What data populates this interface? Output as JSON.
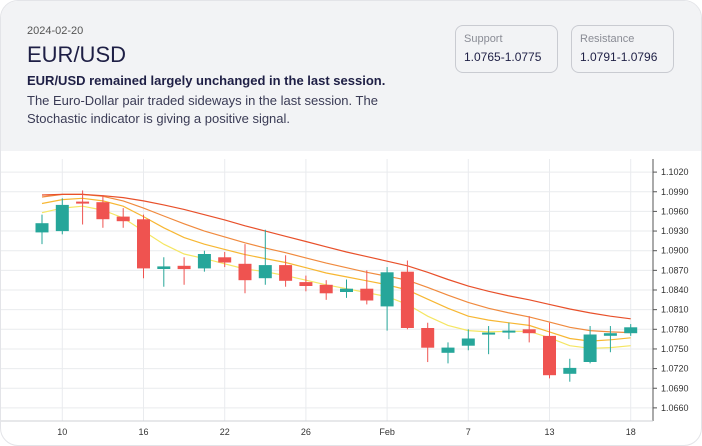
{
  "header": {
    "date": "2024-02-20",
    "pair": "EUR/USD",
    "headline": "EUR/USD remained largely unchanged in the last session.",
    "description": "The Euro-Dollar pair traded sideways in the last session. The Stochastic indicator is giving a positive signal."
  },
  "levels": {
    "support": {
      "label": "Support",
      "value": "1.0765-1.0775"
    },
    "resistance": {
      "label": "Resistance",
      "value": "1.0791-1.0796"
    }
  },
  "colors": {
    "up": "#26a69a",
    "down": "#ef5350",
    "ma1": "#f5e663",
    "ma2": "#f7b733",
    "ma3": "#f08a3e",
    "ma4": "#e8502a"
  },
  "chart_data": {
    "type": "candlestick",
    "title": "EUR/USD",
    "ylim": [
      1.064,
      1.104
    ],
    "yticks": [
      "1.1020",
      "1.0990",
      "1.0960",
      "1.0930",
      "1.0900",
      "1.0870",
      "1.0840",
      "1.0810",
      "1.0780",
      "1.0750",
      "1.0720",
      "1.0690",
      "1.0660"
    ],
    "xticks": [
      {
        "label": "10",
        "index": 1
      },
      {
        "label": "16",
        "index": 5
      },
      {
        "label": "22",
        "index": 9
      },
      {
        "label": "26",
        "index": 13
      },
      {
        "label": "Feb",
        "index": 17
      },
      {
        "label": "7",
        "index": 21
      },
      {
        "label": "13",
        "index": 25
      },
      {
        "label": "18",
        "index": 29
      }
    ],
    "candles": [
      {
        "open": 1.0928,
        "high": 1.0955,
        "low": 1.091,
        "close": 1.0942
      },
      {
        "open": 1.093,
        "high": 1.098,
        "low": 1.0925,
        "close": 1.097
      },
      {
        "open": 1.0975,
        "high": 1.0992,
        "low": 1.094,
        "close": 1.0972
      },
      {
        "open": 1.0974,
        "high": 1.0985,
        "low": 1.0935,
        "close": 1.0948
      },
      {
        "open": 1.0952,
        "high": 1.0965,
        "low": 1.0935,
        "close": 1.0945
      },
      {
        "open": 1.0948,
        "high": 1.0955,
        "low": 1.0858,
        "close": 1.0873
      },
      {
        "open": 1.0872,
        "high": 1.089,
        "low": 1.0845,
        "close": 1.0876
      },
      {
        "open": 1.0877,
        "high": 1.089,
        "low": 1.0848,
        "close": 1.0872
      },
      {
        "open": 1.0873,
        "high": 1.09,
        "low": 1.0868,
        "close": 1.0895
      },
      {
        "open": 1.089,
        "high": 1.0898,
        "low": 1.0875,
        "close": 1.0882
      },
      {
        "open": 1.088,
        "high": 1.091,
        "low": 1.0835,
        "close": 1.0855
      },
      {
        "open": 1.0858,
        "high": 1.0932,
        "low": 1.0848,
        "close": 1.0878
      },
      {
        "open": 1.0878,
        "high": 1.0893,
        "low": 1.0845,
        "close": 1.0854
      },
      {
        "open": 1.0852,
        "high": 1.0862,
        "low": 1.0838,
        "close": 1.0846
      },
      {
        "open": 1.0848,
        "high": 1.0855,
        "low": 1.0825,
        "close": 1.0835
      },
      {
        "open": 1.0837,
        "high": 1.0856,
        "low": 1.0828,
        "close": 1.0842
      },
      {
        "open": 1.0842,
        "high": 1.087,
        "low": 1.0818,
        "close": 1.0824
      },
      {
        "open": 1.0815,
        "high": 1.0875,
        "low": 1.0778,
        "close": 1.0867
      },
      {
        "open": 1.0868,
        "high": 1.0885,
        "low": 1.078,
        "close": 1.0782
      },
      {
        "open": 1.0782,
        "high": 1.079,
        "low": 1.073,
        "close": 1.0752
      },
      {
        "open": 1.0744,
        "high": 1.076,
        "low": 1.0728,
        "close": 1.0752
      },
      {
        "open": 1.0755,
        "high": 1.078,
        "low": 1.0748,
        "close": 1.0766
      },
      {
        "open": 1.0772,
        "high": 1.0785,
        "low": 1.0742,
        "close": 1.0775
      },
      {
        "open": 1.0776,
        "high": 1.079,
        "low": 1.0765,
        "close": 1.0778
      },
      {
        "open": 1.078,
        "high": 1.08,
        "low": 1.076,
        "close": 1.0774
      },
      {
        "open": 1.077,
        "high": 1.079,
        "low": 1.0705,
        "close": 1.071
      },
      {
        "open": 1.0712,
        "high": 1.0735,
        "low": 1.07,
        "close": 1.0721
      },
      {
        "open": 1.073,
        "high": 1.0785,
        "low": 1.0728,
        "close": 1.0772
      },
      {
        "open": 1.077,
        "high": 1.0785,
        "low": 1.0745,
        "close": 1.0774
      },
      {
        "open": 1.0774,
        "high": 1.0788,
        "low": 1.077,
        "close": 1.0783
      }
    ],
    "moving_averages": [
      {
        "name": "MA 1",
        "color": "#f5e663",
        "values": [
          1.0958,
          1.0965,
          1.0968,
          1.0962,
          1.095,
          1.093,
          1.091,
          1.0895,
          1.0888,
          1.088,
          1.0872,
          1.0868,
          1.0862,
          1.0855,
          1.0848,
          1.0842,
          1.0836,
          1.083,
          1.0818,
          1.08,
          1.0786,
          1.0778,
          1.0776,
          1.0777,
          1.0777,
          1.0767,
          1.0755,
          1.0751,
          1.0752,
          1.0755
        ]
      },
      {
        "name": "MA 2",
        "color": "#f7b733",
        "values": [
          1.0972,
          1.0978,
          1.098,
          1.0976,
          1.0968,
          1.0952,
          1.0935,
          1.092,
          1.091,
          1.0902,
          1.0894,
          1.0888,
          1.0882,
          1.0874,
          1.0866,
          1.086,
          1.0854,
          1.0848,
          1.084,
          1.0826,
          1.0812,
          1.08,
          1.0794,
          1.079,
          1.0786,
          1.0776,
          1.0766,
          1.0762,
          1.0764,
          1.0767
        ]
      },
      {
        "name": "MA 3",
        "color": "#f08a3e",
        "values": [
          1.0982,
          1.0986,
          1.0986,
          1.0983,
          1.0976,
          1.0965,
          1.0953,
          1.0941,
          1.093,
          1.0921,
          1.0912,
          1.0904,
          1.0897,
          1.0889,
          1.0881,
          1.0874,
          1.0867,
          1.0861,
          1.0855,
          1.0844,
          1.0832,
          1.0821,
          1.0812,
          1.0805,
          1.0799,
          1.0791,
          1.0783,
          1.0778,
          1.0776,
          1.0775
        ]
      },
      {
        "name": "MA 4",
        "color": "#e8502a",
        "values": [
          1.0985,
          1.0986,
          1.0986,
          1.0984,
          1.0981,
          1.0976,
          1.097,
          1.0963,
          1.0955,
          1.0947,
          1.0938,
          1.093,
          1.0922,
          1.0914,
          1.0906,
          1.0898,
          1.0891,
          1.0884,
          1.0877,
          1.0867,
          1.0856,
          1.0846,
          1.0838,
          1.0831,
          1.0825,
          1.0818,
          1.0811,
          1.0805,
          1.08,
          1.0796
        ]
      }
    ]
  }
}
